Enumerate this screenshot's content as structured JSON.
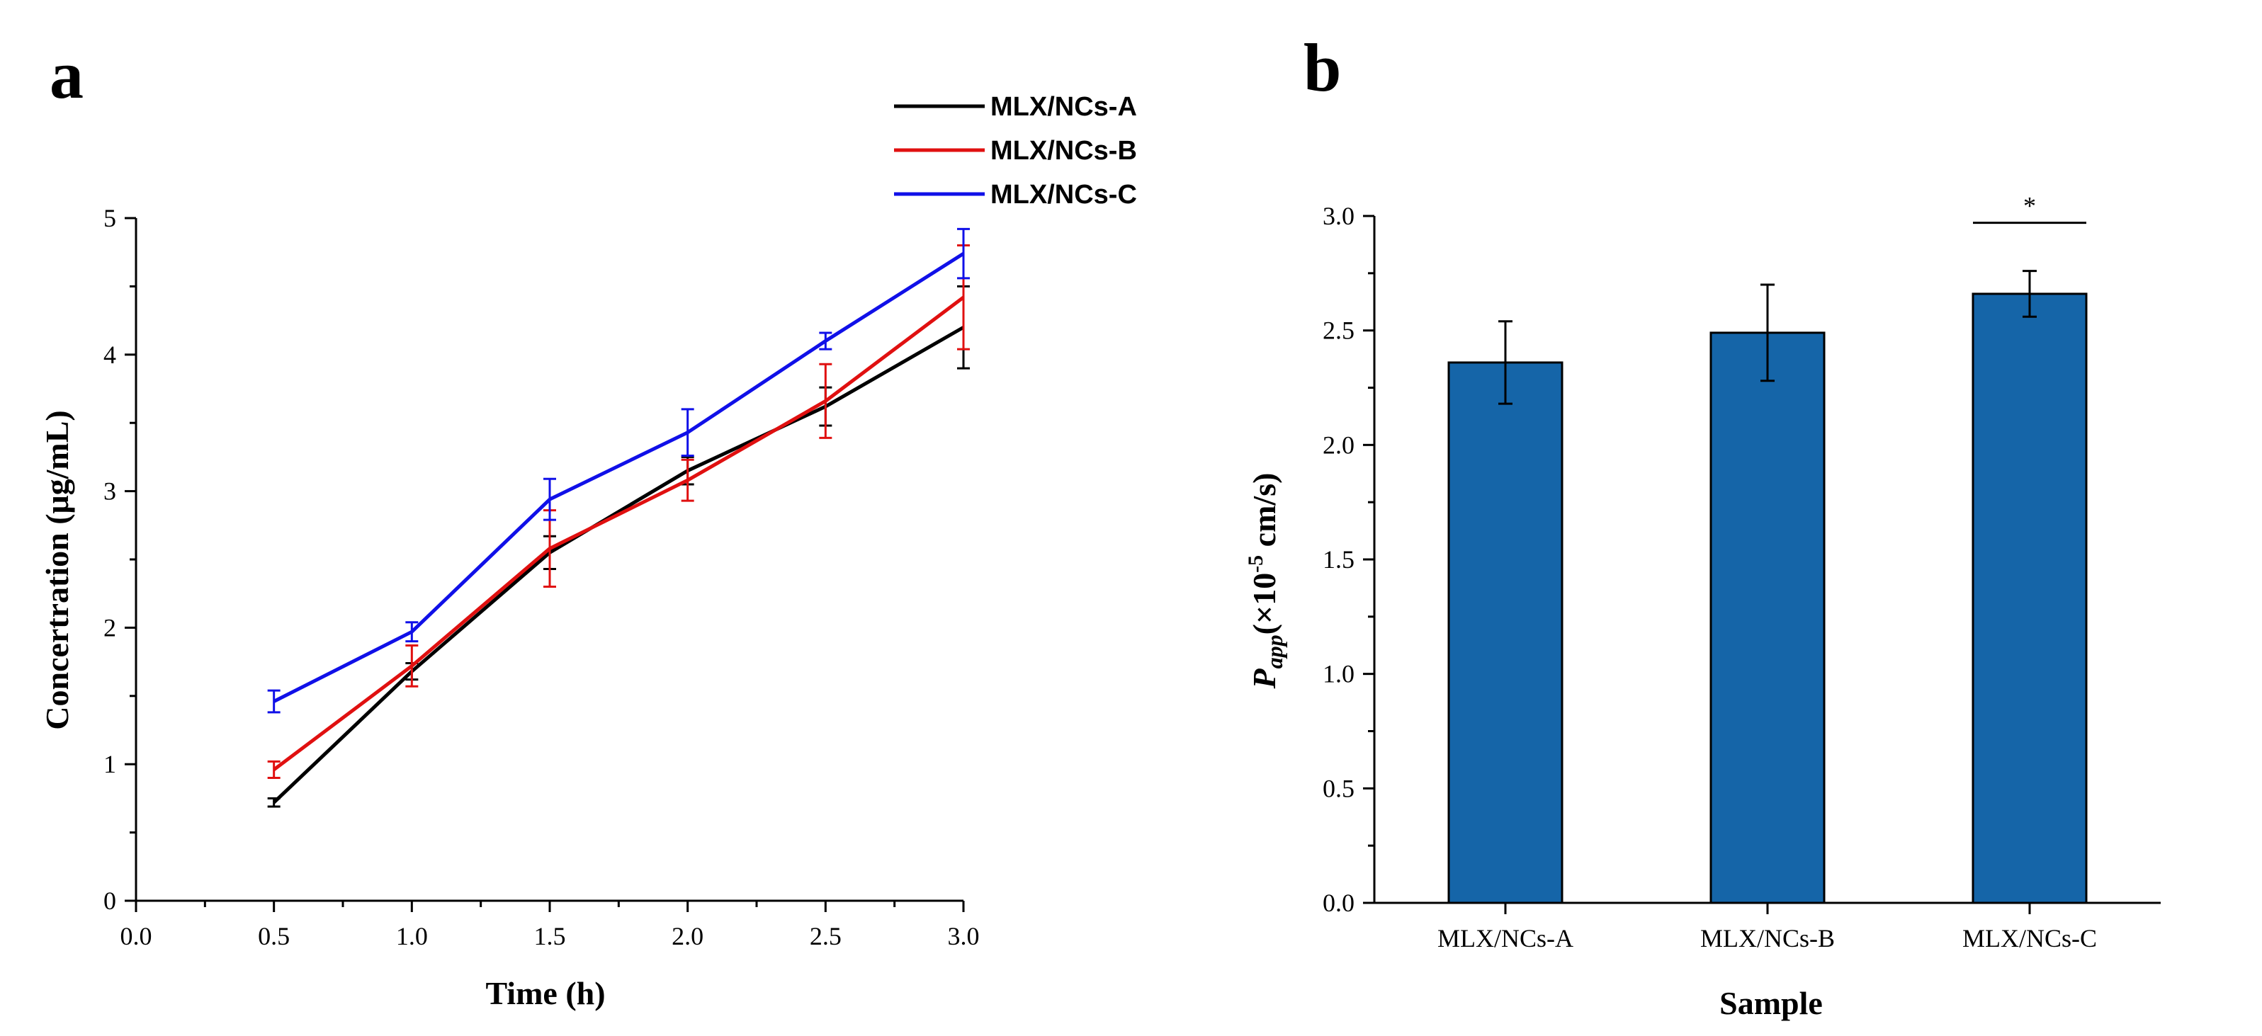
{
  "panels": {
    "a": {
      "letter": "a"
    },
    "b": {
      "letter": "b"
    }
  },
  "colors": {
    "series_a": "#000000",
    "series_b": "#e01010",
    "series_c": "#1010e8",
    "bar_fill": "#1565a8",
    "axis": "#000000"
  },
  "chart_data": [
    {
      "type": "line",
      "title": "",
      "xlabel": "Time (h)",
      "ylabel": "Concertration (μg/mL)",
      "xlim": [
        0.0,
        3.0
      ],
      "ylim": [
        0,
        5
      ],
      "xticks": [
        "0.0",
        "0.5",
        "1.0",
        "1.5",
        "2.0",
        "2.5",
        "3.0"
      ],
      "yticks": [
        "0",
        "1",
        "2",
        "3",
        "4",
        "5"
      ],
      "x": [
        0.5,
        1.0,
        1.5,
        2.0,
        2.5,
        3.0
      ],
      "legend_position": "top-right",
      "series": [
        {
          "name": "MLX/NCs-A",
          "values": [
            0.72,
            1.68,
            2.55,
            3.15,
            3.62,
            4.2
          ],
          "errors": [
            0.03,
            0.06,
            0.12,
            0.1,
            0.14,
            0.3
          ]
        },
        {
          "name": "MLX/NCs-B",
          "values": [
            0.96,
            1.72,
            2.58,
            3.08,
            3.66,
            4.42
          ],
          "errors": [
            0.06,
            0.15,
            0.28,
            0.15,
            0.27,
            0.38
          ]
        },
        {
          "name": "MLX/NCs-C",
          "values": [
            1.46,
            1.97,
            2.94,
            3.43,
            4.1,
            4.74
          ],
          "errors": [
            0.08,
            0.07,
            0.15,
            0.17,
            0.06,
            0.18
          ]
        }
      ]
    },
    {
      "type": "bar",
      "title": "",
      "xlabel": "Sample",
      "ylabel": "Papp(×10⁻⁵ cm/s)",
      "ylabel_parts": {
        "main": "P",
        "sub": "app",
        "open": "(×10",
        "sup": "-5",
        "close": " cm/s)"
      },
      "ylim": [
        0.0,
        3.0
      ],
      "yticks": [
        "0.0",
        "0.5",
        "1.0",
        "1.5",
        "2.0",
        "2.5",
        "3.0"
      ],
      "categories": [
        "MLX/NCs-A",
        "MLX/NCs-B",
        "MLX/NCs-C"
      ],
      "values": [
        2.36,
        2.49,
        2.66
      ],
      "errors": [
        0.18,
        0.21,
        0.1
      ],
      "annotation": {
        "category": "MLX/NCs-C",
        "text": "*"
      }
    }
  ]
}
